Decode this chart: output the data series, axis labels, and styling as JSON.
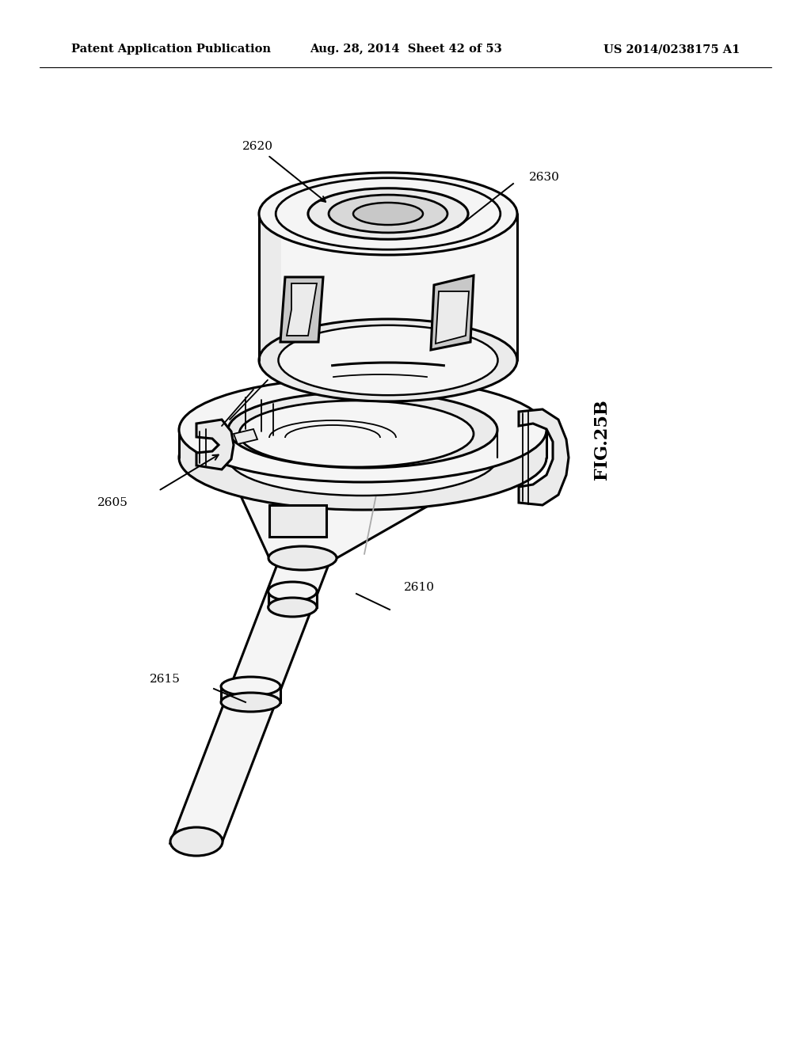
{
  "background_color": "#ffffff",
  "header_left": "Patent Application Publication",
  "header_center": "Aug. 28, 2014  Sheet 42 of 53",
  "header_right": "US 2014/0238175 A1",
  "fig_label": "FIG.25B",
  "line_color": "#000000",
  "line_width": 2.2,
  "thin_lw": 1.3,
  "fill_light": "#f5f5f5",
  "fill_mid": "#ebebeb",
  "fill_dark": "#d8d8d8",
  "fill_darker": "#c8c8c8"
}
